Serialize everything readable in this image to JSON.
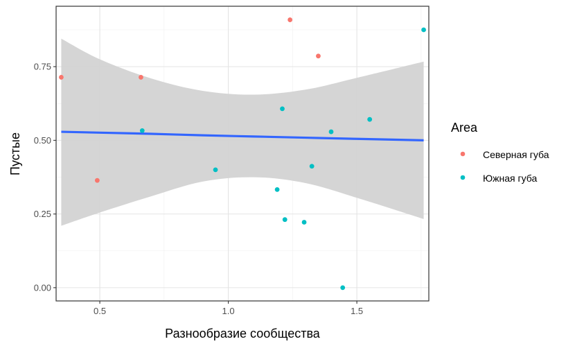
{
  "chart_data": {
    "type": "scatter",
    "xlabel": "Разнообразие сообщества",
    "ylabel": "Пустые",
    "xlim": [
      0.33,
      1.78
    ],
    "ylim": [
      -0.045,
      0.955
    ],
    "x_ticks": [
      0.5,
      1.0,
      1.5
    ],
    "x_tick_labels": [
      "0.5",
      "1.0",
      "1.5"
    ],
    "y_ticks": [
      0.0,
      0.25,
      0.5,
      0.75
    ],
    "y_tick_labels": [
      "0.00",
      "0.25",
      "0.50",
      "0.75"
    ],
    "grid": true,
    "legend": {
      "title": "Area",
      "position": "right",
      "entries": [
        {
          "name": "Северная губа",
          "color": "#F8766D"
        },
        {
          "name": "Южная губа",
          "color": "#00BFC4"
        }
      ]
    },
    "series": [
      {
        "name": "Северная губа",
        "color": "#F8766D",
        "points": [
          {
            "x": 0.35,
            "y": 0.714
          },
          {
            "x": 0.49,
            "y": 0.364
          },
          {
            "x": 0.66,
            "y": 0.714
          },
          {
            "x": 1.24,
            "y": 0.909
          },
          {
            "x": 1.35,
            "y": 0.786
          }
        ]
      },
      {
        "name": "Южная губа",
        "color": "#00BFC4",
        "points": [
          {
            "x": 0.665,
            "y": 0.533
          },
          {
            "x": 0.95,
            "y": 0.4
          },
          {
            "x": 1.19,
            "y": 0.333
          },
          {
            "x": 1.21,
            "y": 0.607
          },
          {
            "x": 1.22,
            "y": 0.231
          },
          {
            "x": 1.295,
            "y": 0.222
          },
          {
            "x": 1.325,
            "y": 0.412
          },
          {
            "x": 1.4,
            "y": 0.529
          },
          {
            "x": 1.445,
            "y": 0.0
          },
          {
            "x": 1.55,
            "y": 0.571
          },
          {
            "x": 1.76,
            "y": 0.875
          }
        ]
      }
    ],
    "trend": {
      "color": "#3366FF",
      "band_color": "#d3d3d3",
      "x": [
        0.35,
        0.5,
        0.7,
        0.9,
        1.1,
        1.3,
        1.5,
        1.76
      ],
      "fit": [
        0.529,
        0.526,
        0.522,
        0.517,
        0.513,
        0.509,
        0.505,
        0.5
      ],
      "upper": [
        0.845,
        0.775,
        0.71,
        0.668,
        0.655,
        0.672,
        0.712,
        0.767
      ],
      "lower": [
        0.21,
        0.255,
        0.31,
        0.36,
        0.375,
        0.355,
        0.305,
        0.233
      ]
    }
  }
}
